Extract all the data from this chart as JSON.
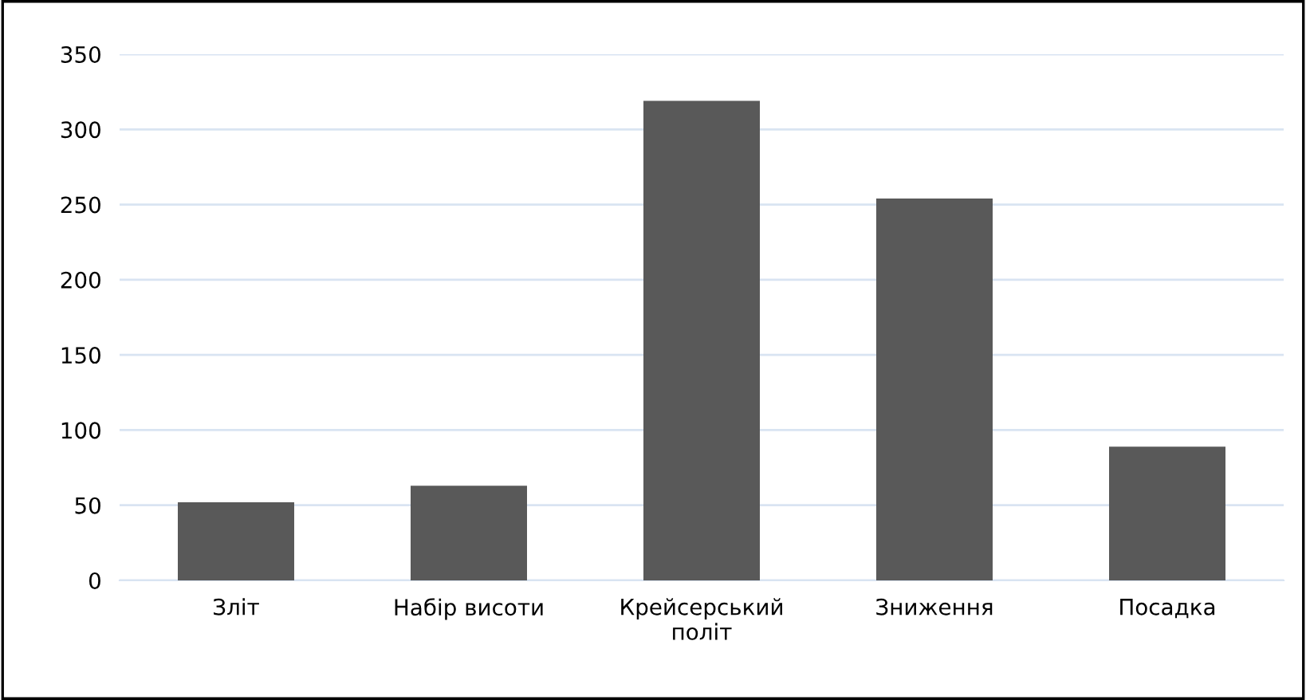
{
  "chart_data": {
    "type": "bar",
    "categories": [
      "Зліт",
      "Набір висоти",
      "Крейсерський політ",
      "Зниження",
      "Посадка"
    ],
    "values": [
      52,
      63,
      319,
      254,
      89
    ],
    "color": "#595959",
    "ylim": [
      0,
      350
    ],
    "yticks": [
      0,
      50,
      100,
      150,
      200,
      250,
      300,
      350
    ],
    "grid": "y"
  }
}
